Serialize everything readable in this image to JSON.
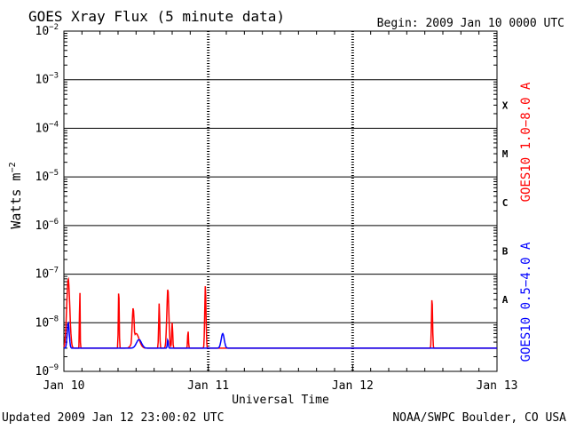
{
  "chart_data": {
    "type": "line",
    "title": "GOES Xray Flux (5 minute data)",
    "begin_label": "Begin:  2009 Jan 10 0000 UTC",
    "xlabel": "Universal Time",
    "ylabel_base": "Watts m",
    "ylabel_exp": "−2",
    "x_ticks": [
      "Jan 10",
      "Jan 11",
      "Jan 12",
      "Jan 13"
    ],
    "xlim_days": [
      0,
      3
    ],
    "y_scale": "log",
    "ylim": [
      1e-09,
      0.01
    ],
    "y_tick_exponents": [
      "−2",
      "−3",
      "−4",
      "−5",
      "−6",
      "−7",
      "−8",
      "−9"
    ],
    "y_tick_base": "10",
    "flare_classes": [
      {
        "label": "X",
        "value": 0.0003
      },
      {
        "label": "M",
        "value": 3e-05
      },
      {
        "label": "C",
        "value": 3e-06
      },
      {
        "label": "B",
        "value": 3e-07
      },
      {
        "label": "A",
        "value": 3e-08
      }
    ],
    "series": [
      {
        "name": "GOES10 1.0−8.0 A",
        "color": "#ff0000",
        "baseline": 3e-09,
        "spikes": [
          {
            "t": 0.03,
            "peak": 8e-08,
            "width": 0.03
          },
          {
            "t": 0.11,
            "peak": 6e-08,
            "width": 0.006
          },
          {
            "t": 0.38,
            "peak": 6e-08,
            "width": 0.008
          },
          {
            "t": 0.48,
            "peak": 2e-08,
            "width": 0.02
          },
          {
            "t": 0.5,
            "peak": 6e-09,
            "width": 0.06
          },
          {
            "t": 0.66,
            "peak": 2.5e-08,
            "width": 0.01
          },
          {
            "t": 0.72,
            "peak": 5e-08,
            "width": 0.02
          },
          {
            "t": 0.75,
            "peak": 1e-08,
            "width": 0.01
          },
          {
            "t": 0.86,
            "peak": 7e-09,
            "width": 0.008
          },
          {
            "t": 0.98,
            "peak": 6e-08,
            "width": 0.012
          },
          {
            "t": 2.55,
            "peak": 3.5e-08,
            "width": 0.01
          }
        ]
      },
      {
        "name": "GOES10 0.5−4.0 A",
        "color": "#0000ff",
        "baseline": 3e-09,
        "spikes": [
          {
            "t": 0.03,
            "peak": 1e-08,
            "width": 0.02
          },
          {
            "t": 0.52,
            "peak": 4.5e-09,
            "width": 0.05
          },
          {
            "t": 0.72,
            "peak": 4.5e-09,
            "width": 0.01
          },
          {
            "t": 1.1,
            "peak": 6e-09,
            "width": 0.03
          }
        ]
      }
    ]
  },
  "footer": {
    "updated": "Updated 2009 Jan 12 23:00:02 UTC",
    "credit": "NOAA/SWPC Boulder, CO USA"
  }
}
